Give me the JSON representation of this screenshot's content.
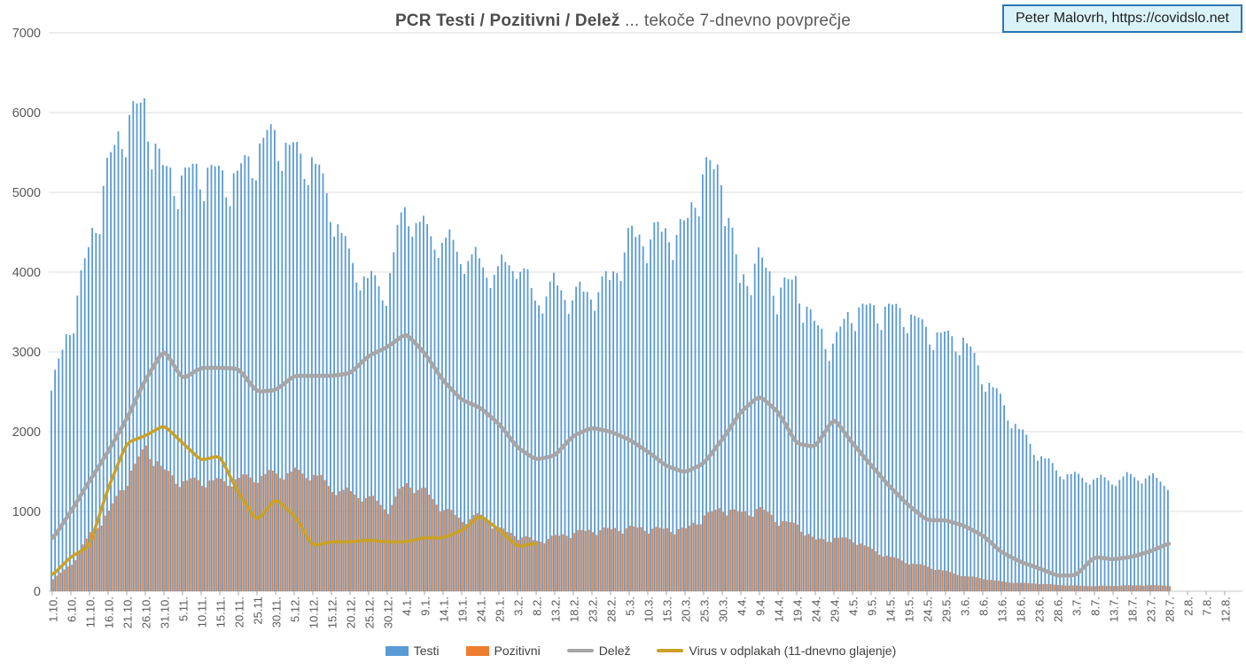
{
  "header": {
    "title_bold": "PCR Testi / Pozitivni / Delež",
    "title_rest": " ... tekoče 7-dnevno povprečje",
    "watermark": "Peter Malovrh, https://covidslo.net"
  },
  "colors": {
    "testi": "#5B9BD5",
    "pozitivni": "#ED7D31",
    "delez": "#A6A6A6",
    "virus": "#C9A227",
    "grid": "#DCDCDC",
    "axis_text": "#595959",
    "watermark_border": "#2E75B6",
    "watermark_bg": "#DAF3F9",
    "title_text": "#595959"
  },
  "legend": {
    "items": [
      {
        "id": "testi",
        "label": "Testi",
        "swatch": "bar",
        "color": "#5B9BD5"
      },
      {
        "id": "pozitivni",
        "label": "Pozitivni",
        "swatch": "bar",
        "color": "#ED7D31"
      },
      {
        "id": "delez",
        "label": "Delež",
        "swatch": "line",
        "color": "#A6A6A6"
      },
      {
        "id": "virus",
        "label": "Virus v odplakah (11-dnevno glajenje)",
        "swatch": "line",
        "color": "#C9A227"
      }
    ]
  },
  "chart_data": {
    "type": "combo",
    "title": "PCR Testi / Pozitivni / Delež ... tekoče 7-dnevno povprečje",
    "x_step_days": 5,
    "grid": true,
    "legend_position": "bottom",
    "y_axis": {
      "min": 0,
      "max": 7000,
      "step": 1000
    },
    "y_tick_labels": [
      "0",
      "1000",
      "2000",
      "3000",
      "4000",
      "5000",
      "6000",
      "7000"
    ],
    "categories": [
      "1.10.",
      "6.10.",
      "11.10.",
      "16.10.",
      "21.10.",
      "26.10.",
      "31.10.",
      "5.11.",
      "10.11.",
      "15.11.",
      "20.11.",
      "25.11",
      "30.11.",
      "5.12.",
      "10.12.",
      "15.12.",
      "20.12.",
      "25.12.",
      "30.12.",
      "4.1.",
      "9.1.",
      "14.1.",
      "19.1.",
      "24.1.",
      "29.1.",
      "3.2.",
      "8.2.",
      "13.2.",
      "18.2.",
      "23.2.",
      "28.2.",
      "5.3.",
      "10.3.",
      "15.3.",
      "20.3.",
      "25.3.",
      "30.3.",
      "4.4.",
      "9.4.",
      "14.4.",
      "19.4.",
      "24.4.",
      "29.4.",
      "4.5.",
      "9.5.",
      "14.5.",
      "19.5.",
      "24.5.",
      "29.5.",
      "3.6.",
      "8.6.",
      "13.6.",
      "18.6.",
      "23.6.",
      "28.6.",
      "3.7.",
      "8.7.",
      "13.7.",
      "18.7.",
      "23.7.",
      "28.7.",
      "2.8.",
      "7.8.",
      "12.8."
    ],
    "weekly_pattern": [
      0.99,
      1.015,
      1.025,
      1.01,
      1.0,
      0.955,
      0.925
    ],
    "series": [
      {
        "id": "testi",
        "name": "Testi",
        "type": "bar",
        "color": "#5B9BD5",
        "values": [
          2540,
          3350,
          4300,
          5300,
          5950,
          6100,
          5280,
          5200,
          5330,
          5240,
          5220,
          5560,
          5770,
          5520,
          5450,
          4900,
          4200,
          3920,
          3820,
          4870,
          4550,
          4440,
          4280,
          4130,
          4030,
          4200,
          3680,
          3850,
          3730,
          3780,
          3910,
          4440,
          4480,
          4530,
          4540,
          5290,
          5300,
          3860,
          4200,
          3800,
          3900,
          3350,
          3100,
          3550,
          3550,
          3560,
          3500,
          3300,
          3200,
          3180,
          2750,
          2420,
          2030,
          1750,
          1530,
          1450,
          1420,
          1400,
          1450,
          1440,
          1360,
          null,
          null,
          null
        ]
      },
      {
        "id": "pozitivni",
        "name": "Pozitivni",
        "type": "bar",
        "color": "#ED7D31",
        "values": [
          150,
          350,
          730,
          1000,
          1430,
          1820,
          1500,
          1380,
          1400,
          1380,
          1420,
          1450,
          1490,
          1500,
          1480,
          1300,
          1240,
          1180,
          1040,
          1370,
          1250,
          1040,
          900,
          960,
          780,
          700,
          630,
          690,
          740,
          770,
          780,
          800,
          790,
          780,
          780,
          950,
          1050,
          980,
          1040,
          890,
          830,
          640,
          670,
          650,
          520,
          430,
          360,
          310,
          250,
          190,
          160,
          120,
          105,
          95,
          80,
          70,
          65,
          70,
          75,
          75,
          70,
          null,
          null,
          null
        ]
      },
      {
        "id": "delez",
        "name": "Delež",
        "type": "line",
        "color": "#A6A6A6",
        "width": 4.5,
        "values": [
          650,
          1000,
          1380,
          1750,
          2160,
          2650,
          3030,
          2660,
          2800,
          2800,
          2790,
          2500,
          2520,
          2700,
          2700,
          2700,
          2730,
          2950,
          3060,
          3230,
          2990,
          2640,
          2400,
          2300,
          2100,
          1800,
          1650,
          1700,
          1950,
          2050,
          2000,
          1900,
          1750,
          1570,
          1490,
          1600,
          1900,
          2250,
          2450,
          2250,
          1850,
          1810,
          2170,
          1855,
          1580,
          1310,
          1080,
          890,
          890,
          820,
          700,
          490,
          370,
          290,
          195,
          200,
          430,
          400,
          430,
          500,
          600,
          null,
          null,
          null
        ]
      },
      {
        "id": "virus",
        "name": "Virus v odplakah (11-dnevno glajenje)",
        "type": "line",
        "color": "#C9A227",
        "width": 3.5,
        "values": [
          200,
          430,
          570,
          1290,
          1860,
          1950,
          2080,
          1860,
          1640,
          1700,
          1230,
          880,
          1160,
          950,
          570,
          620,
          620,
          640,
          620,
          620,
          670,
          670,
          760,
          950,
          770,
          560,
          600,
          null,
          null,
          null,
          null,
          null,
          null,
          null,
          null,
          null,
          null,
          null,
          null,
          null,
          null,
          null,
          null,
          null,
          null,
          null,
          null,
          null,
          null,
          null,
          null,
          null,
          null,
          null,
          null,
          null,
          null,
          null,
          null,
          null,
          null,
          null,
          null,
          null
        ]
      }
    ]
  }
}
